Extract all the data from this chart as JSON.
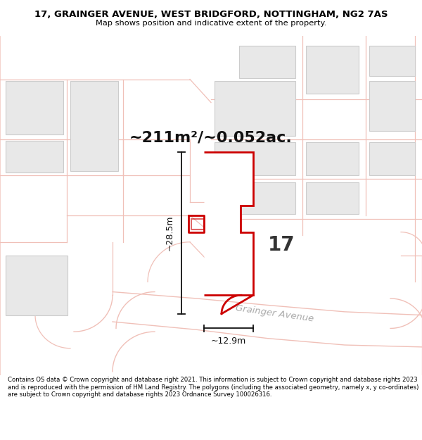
{
  "title_line1": "17, GRAINGER AVENUE, WEST BRIDGFORD, NOTTINGHAM, NG2 7AS",
  "title_line2": "Map shows position and indicative extent of the property.",
  "area_text": "~211m²/~0.052ac.",
  "property_number": "17",
  "dim_width": "~12.9m",
  "dim_height": "~28.5m",
  "street_label": "Grainger Avenue",
  "footer_text": "Contains OS data © Crown copyright and database right 2021. This information is subject to Crown copyright and database rights 2023 and is reproduced with the permission of HM Land Registry. The polygons (including the associated geometry, namely x, y co-ordinates) are subject to Crown copyright and database rights 2023 Ordnance Survey 100026316.",
  "map_bg": "#ffffff",
  "property_fill": "#ffffff",
  "property_edge": "#cc0000",
  "road_line_color": "#f0c0b8",
  "plot_line_color": "#e8b0a8",
  "building_fill": "#e8e8e8",
  "building_edge": "#cccccc",
  "title_bg": "#ffffff",
  "footer_bg": "#ffffff",
  "dim_color": "#111111",
  "label_color": "#aaaaaa"
}
